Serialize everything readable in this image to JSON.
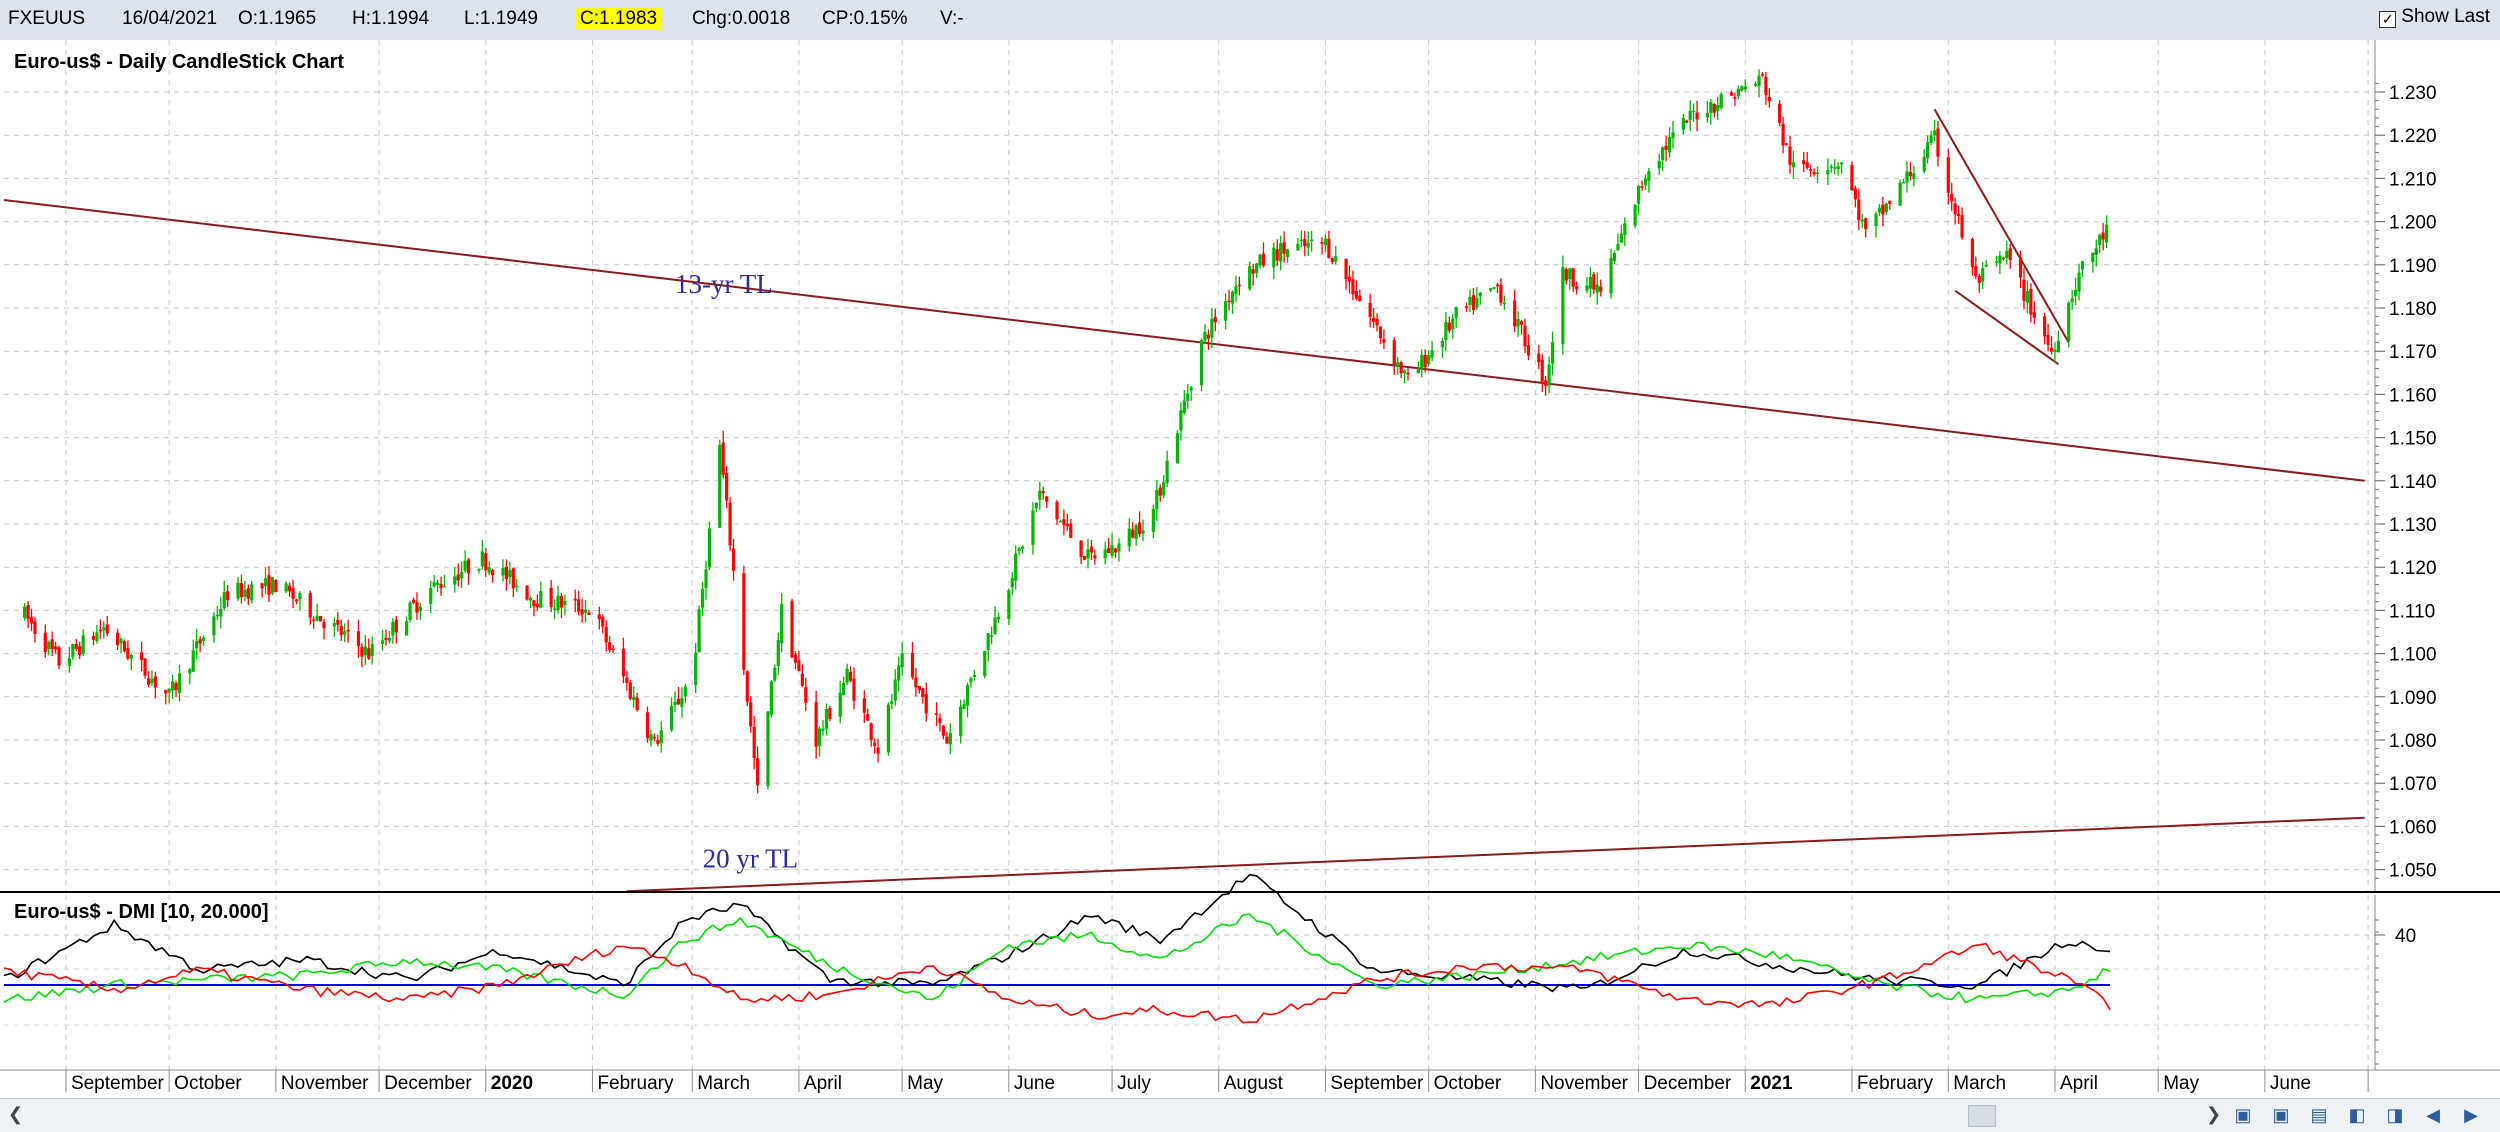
{
  "toolbar": {
    "symbol": "FXEUUS",
    "date": "16/04/2021",
    "open": "O:1.1965",
    "high": "H:1.1994",
    "low": "L:1.1949",
    "close": "C:1.1983",
    "change": "Chg:0.0018",
    "change_pct": "CP:0.15%",
    "volume": "V:-",
    "show_last_label": "Show Last",
    "show_last_checked": true
  },
  "chart_data": [
    {
      "type": "candlestick",
      "title": "Euro-us$ - Daily CandleStick Chart",
      "ylim": [
        1.045,
        1.236
      ],
      "y_ticks": [
        "1.230",
        "1.220",
        "1.210",
        "1.200",
        "1.190",
        "1.180",
        "1.170",
        "1.160",
        "1.150",
        "1.140",
        "1.130",
        "1.120",
        "1.110",
        "1.100",
        "1.090",
        "1.080",
        "1.070",
        "1.060",
        "1.050"
      ],
      "x_labels": [
        "September",
        "October",
        "November",
        "December",
        "2020",
        "February",
        "March",
        "April",
        "May",
        "June",
        "July",
        "August",
        "September",
        "October",
        "November",
        "December",
        "2021",
        "February",
        "March",
        "April",
        "May",
        "June"
      ],
      "grid": true,
      "up_color": "#00b400",
      "down_color": "#ff0000",
      "price_path": [
        [
          "2019-08-20",
          1.109
        ],
        [
          "2019-08-30",
          1.098
        ],
        [
          "2019-09-12",
          1.106
        ],
        [
          "2019-10-01",
          1.09
        ],
        [
          "2019-10-18",
          1.114
        ],
        [
          "2019-11-01",
          1.116
        ],
        [
          "2019-11-28",
          1.1
        ],
        [
          "2019-12-16",
          1.115
        ],
        [
          "2019-12-31",
          1.122
        ],
        [
          "2020-01-15",
          1.113
        ],
        [
          "2020-02-01",
          1.11
        ],
        [
          "2020-02-19",
          1.079
        ],
        [
          "2020-03-01",
          1.095
        ],
        [
          "2020-03-09",
          1.148
        ],
        [
          "2020-03-20",
          1.068
        ],
        [
          "2020-03-27",
          1.11
        ],
        [
          "2020-04-06",
          1.08
        ],
        [
          "2020-04-15",
          1.095
        ],
        [
          "2020-04-24",
          1.078
        ],
        [
          "2020-05-01",
          1.098
        ],
        [
          "2020-05-14",
          1.08
        ],
        [
          "2020-05-29",
          1.11
        ],
        [
          "2020-06-10",
          1.137
        ],
        [
          "2020-06-24",
          1.122
        ],
        [
          "2020-07-03",
          1.125
        ],
        [
          "2020-07-13",
          1.133
        ],
        [
          "2020-07-27",
          1.172
        ],
        [
          "2020-08-07",
          1.187
        ],
        [
          "2020-08-18",
          1.193
        ],
        [
          "2020-09-01",
          1.195
        ],
        [
          "2020-09-11",
          1.182
        ],
        [
          "2020-09-25",
          1.163
        ],
        [
          "2020-10-09",
          1.178
        ],
        [
          "2020-10-21",
          1.185
        ],
        [
          "2020-11-04",
          1.163
        ],
        [
          "2020-11-09",
          1.188
        ],
        [
          "2020-11-20",
          1.184
        ],
        [
          "2020-12-04",
          1.213
        ],
        [
          "2020-12-17",
          1.225
        ],
        [
          "2021-01-06",
          1.233
        ],
        [
          "2021-01-15",
          1.212
        ],
        [
          "2021-01-29",
          1.214
        ],
        [
          "2021-02-05",
          1.197
        ],
        [
          "2021-02-25",
          1.219
        ],
        [
          "2021-03-09",
          1.186
        ],
        [
          "2021-03-18",
          1.192
        ],
        [
          "2021-03-31",
          1.17
        ],
        [
          "2021-04-08",
          1.188
        ],
        [
          "2021-04-16",
          1.198
        ]
      ],
      "trendlines": [
        {
          "label": "13-yr TL",
          "from": [
            "2019-08-14",
            1.205
          ],
          "to": [
            "2021-06-30",
            1.14
          ]
        },
        {
          "label": "20 yr TL",
          "from": [
            "2020-02-11",
            1.045
          ],
          "to": [
            "2021-06-30",
            1.062
          ]
        },
        {
          "label": "",
          "from": [
            "2021-02-25",
            1.226
          ],
          "to": [
            "2021-04-05",
            1.172
          ]
        },
        {
          "label": "",
          "from": [
            "2021-03-03",
            1.184
          ],
          "to": [
            "2021-04-02",
            1.167
          ]
        }
      ]
    },
    {
      "type": "line",
      "title": "Euro-us$ - DMI [10, 20.000]",
      "y_ticks": [
        "40"
      ],
      "reference_line": 20,
      "reference_color": "#0000ff",
      "series": [
        {
          "color": "#000000",
          "points": [
            [
              "2019-08-14",
              22
            ],
            [
              "2019-09-15",
              44
            ],
            [
              "2019-10-10",
              26
            ],
            [
              "2019-11-10",
              30
            ],
            [
              "2019-12-10",
              22
            ],
            [
              "2020-01-05",
              34
            ],
            [
              "2020-02-10",
              20
            ],
            [
              "2020-02-28",
              46
            ],
            [
              "2020-03-15",
              52
            ],
            [
              "2020-04-10",
              22
            ],
            [
              "2020-05-10",
              20
            ],
            [
              "2020-06-01",
              32
            ],
            [
              "2020-06-25",
              48
            ],
            [
              "2020-07-15",
              38
            ],
            [
              "2020-08-10",
              64
            ],
            [
              "2020-09-15",
              26
            ],
            [
              "2020-10-15",
              22
            ],
            [
              "2020-11-15",
              18
            ],
            [
              "2020-12-15",
              34
            ],
            [
              "2021-01-10",
              28
            ],
            [
              "2021-02-10",
              22
            ],
            [
              "2021-03-10",
              20
            ],
            [
              "2021-04-05",
              38
            ],
            [
              "2021-04-17",
              34
            ]
          ]
        },
        {
          "color": "#00dd00",
          "points": [
            [
              "2019-08-14",
              14
            ],
            [
              "2019-09-15",
              20
            ],
            [
              "2019-10-10",
              22
            ],
            [
              "2019-11-10",
              24
            ],
            [
              "2019-12-10",
              30
            ],
            [
              "2020-01-05",
              26
            ],
            [
              "2020-02-10",
              16
            ],
            [
              "2020-02-28",
              38
            ],
            [
              "2020-03-15",
              46
            ],
            [
              "2020-04-10",
              28
            ],
            [
              "2020-05-10",
              14
            ],
            [
              "2020-06-01",
              36
            ],
            [
              "2020-06-25",
              40
            ],
            [
              "2020-07-15",
              30
            ],
            [
              "2020-08-10",
              48
            ],
            [
              "2020-09-15",
              20
            ],
            [
              "2020-10-15",
              24
            ],
            [
              "2020-11-15",
              30
            ],
            [
              "2020-12-15",
              36
            ],
            [
              "2021-01-10",
              32
            ],
            [
              "2021-02-10",
              20
            ],
            [
              "2021-03-10",
              14
            ],
            [
              "2021-04-05",
              18
            ],
            [
              "2021-04-17",
              26
            ]
          ]
        },
        {
          "color": "#ff0000",
          "points": [
            [
              "2019-08-14",
              26
            ],
            [
              "2019-09-15",
              18
            ],
            [
              "2019-10-10",
              26
            ],
            [
              "2019-11-10",
              18
            ],
            [
              "2019-12-10",
              14
            ],
            [
              "2020-01-05",
              20
            ],
            [
              "2020-02-10",
              36
            ],
            [
              "2020-02-28",
              28
            ],
            [
              "2020-03-15",
              14
            ],
            [
              "2020-04-10",
              16
            ],
            [
              "2020-05-10",
              28
            ],
            [
              "2020-06-01",
              14
            ],
            [
              "2020-06-25",
              8
            ],
            [
              "2020-07-15",
              10
            ],
            [
              "2020-08-10",
              6
            ],
            [
              "2020-09-15",
              22
            ],
            [
              "2020-10-15",
              28
            ],
            [
              "2020-11-15",
              26
            ],
            [
              "2020-12-15",
              14
            ],
            [
              "2021-01-10",
              12
            ],
            [
              "2021-02-10",
              22
            ],
            [
              "2021-03-10",
              36
            ],
            [
              "2021-04-05",
              22
            ],
            [
              "2021-04-17",
              12
            ]
          ]
        }
      ]
    }
  ]
}
